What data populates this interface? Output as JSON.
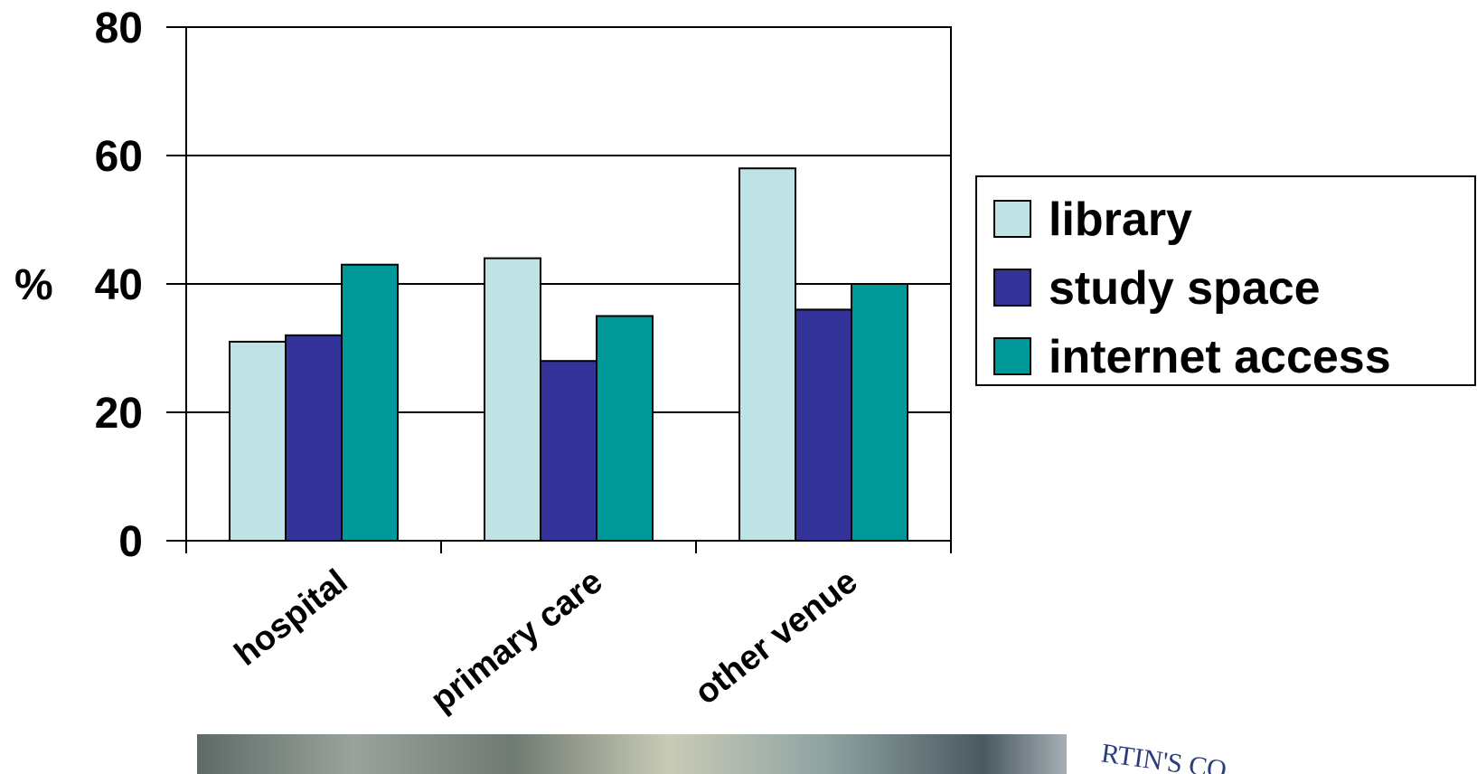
{
  "chart_data": {
    "type": "bar",
    "categories": [
      "hospital",
      "primary care",
      "other venue"
    ],
    "series": [
      {
        "name": "library",
        "values": [
          31,
          44,
          58
        ]
      },
      {
        "name": "study space",
        "values": [
          32,
          28,
          36
        ]
      },
      {
        "name": "internet access",
        "values": [
          43,
          35,
          40
        ]
      }
    ],
    "colors": [
      "#bfe2e4",
      "#333399",
      "#009999"
    ],
    "ylabel": "%",
    "ylim": [
      0,
      80
    ],
    "yticks": [
      0,
      20,
      40,
      60,
      80
    ],
    "grid": true,
    "legend_position": "right"
  },
  "banner": {
    "text": "RTIN'S CO"
  }
}
